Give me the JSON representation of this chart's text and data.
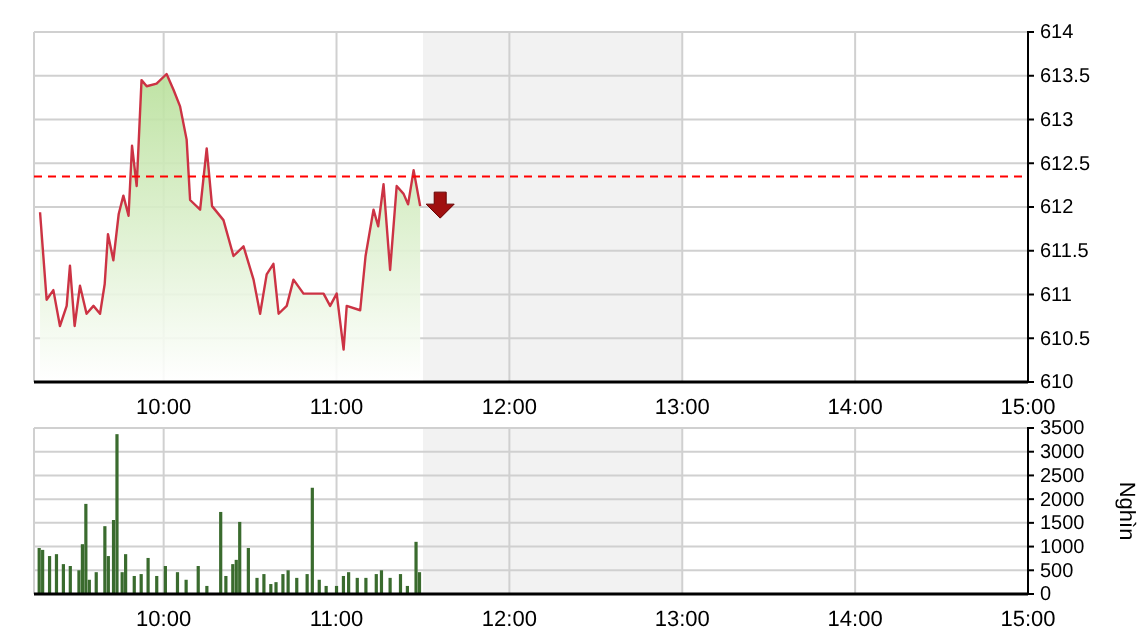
{
  "chart_data": [
    {
      "type": "area",
      "xlim": [
        9.25,
        15
      ],
      "ylim": [
        610,
        614
      ],
      "xticks": [
        {
          "value": 10,
          "label": "10:00"
        },
        {
          "value": 11,
          "label": "11:00"
        },
        {
          "value": 12,
          "label": "12:00"
        },
        {
          "value": 13,
          "label": "13:00"
        },
        {
          "value": 14,
          "label": "14:00"
        },
        {
          "value": 15,
          "label": "15:00"
        }
      ],
      "yticks": [
        610,
        610.5,
        611,
        611.5,
        612,
        612.5,
        613,
        613.5,
        614
      ],
      "grid": true,
      "ref_lines": [
        {
          "axis": "y",
          "value": 612.35,
          "color": "#ff0000",
          "line_style": "dashed"
        }
      ],
      "bands": [
        {
          "axis": "x",
          "from": 11.5,
          "to": 13,
          "color": "#f2f2f2"
        }
      ],
      "series": [
        {
          "color": "#cc3344",
          "x": [
            9.285,
            9.323,
            9.362,
            9.4,
            9.439,
            9.458,
            9.485,
            9.516,
            9.554,
            9.594,
            9.632,
            9.659,
            9.678,
            9.709,
            9.74,
            9.767,
            9.797,
            9.817,
            9.844,
            9.872,
            9.902,
            9.959,
            10.017,
            10.057,
            10.095,
            10.133,
            10.153,
            10.211,
            10.249,
            10.28,
            10.346,
            10.404,
            10.462,
            10.52,
            10.558,
            10.596,
            10.635,
            10.665,
            10.712,
            10.751,
            10.809,
            10.867,
            10.925,
            10.963,
            11.001,
            11.041,
            11.059,
            11.137,
            11.168,
            11.214,
            11.241,
            11.272,
            11.31,
            11.348,
            11.388,
            11.414,
            11.446,
            11.484
          ],
          "values": [
            611.94,
            610.94,
            611.05,
            610.64,
            610.87,
            611.33,
            610.64,
            611.1,
            610.78,
            610.87,
            610.78,
            611.12,
            611.69,
            611.39,
            611.92,
            612.13,
            611.9,
            612.7,
            612.24,
            613.45,
            613.38,
            613.41,
            613.52,
            613.34,
            613.15,
            612.77,
            612.08,
            611.97,
            612.67,
            612.01,
            611.85,
            611.44,
            611.55,
            611.17,
            610.78,
            611.23,
            611.35,
            610.78,
            610.87,
            611.17,
            611.01,
            611.01,
            611.01,
            610.87,
            611.01,
            610.37,
            610.87,
            610.82,
            611.44,
            611.97,
            611.78,
            612.26,
            611.28,
            612.24,
            612.15,
            612.03,
            612.42,
            612.01
          ]
        }
      ]
    },
    {
      "type": "bar",
      "xlim": [
        9.25,
        15
      ],
      "ylim": [
        0,
        3500
      ],
      "ylabel": "Nghìn",
      "xticks": [
        {
          "value": 10,
          "label": "10:00"
        },
        {
          "value": 11,
          "label": "11:00"
        },
        {
          "value": 12,
          "label": "12:00"
        },
        {
          "value": 13,
          "label": "13:00"
        },
        {
          "value": 14,
          "label": "14:00"
        },
        {
          "value": 15,
          "label": "15:00"
        }
      ],
      "yticks": [
        0,
        500,
        1000,
        1500,
        2000,
        2500,
        3000,
        3500
      ],
      "grid": true,
      "bands": [
        {
          "axis": "x",
          "from": 11.5,
          "to": 13,
          "color": "#f2f2f2"
        }
      ],
      "series": [
        {
          "color": "#3a6b2e",
          "x": [
            9.28,
            9.3,
            9.34,
            9.38,
            9.42,
            9.46,
            9.51,
            9.53,
            9.55,
            9.57,
            9.61,
            9.66,
            9.68,
            9.71,
            9.73,
            9.76,
            9.78,
            9.83,
            9.87,
            9.91,
            9.96,
            10.01,
            10.08,
            10.13,
            10.2,
            10.25,
            10.33,
            10.36,
            10.4,
            10.42,
            10.44,
            10.49,
            10.54,
            10.58,
            10.62,
            10.65,
            10.69,
            10.72,
            10.77,
            10.83,
            10.86,
            10.9,
            10.94,
            11,
            11.04,
            11.07,
            11.12,
            11.17,
            11.23,
            11.26,
            11.31,
            11.37,
            11.41,
            11.46,
            11.48
          ],
          "values": [
            970,
            930,
            800,
            840,
            630,
            590,
            500,
            1050,
            1900,
            300,
            460,
            1430,
            800,
            1560,
            3370,
            460,
            840,
            380,
            420,
            760,
            380,
            590,
            460,
            300,
            590,
            170,
            1730,
            380,
            630,
            720,
            1520,
            970,
            340,
            420,
            210,
            250,
            420,
            500,
            340,
            420,
            2240,
            300,
            170,
            170,
            380,
            460,
            340,
            340,
            420,
            500,
            340,
            420,
            170,
            1100,
            460
          ]
        }
      ]
    }
  ]
}
